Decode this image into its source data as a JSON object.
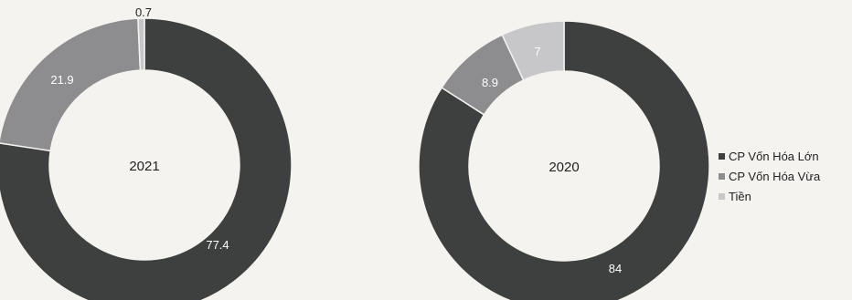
{
  "chart_data": [
    {
      "type": "pie",
      "center_label": "2021",
      "categories": [
        "CP Vốn Hóa Lớn",
        "CP Vốn Hóa Vừa",
        "Tiền"
      ],
      "values": [
        77.4,
        21.9,
        0.7
      ],
      "value_labels": [
        "77.4",
        "21.9",
        "0.7"
      ]
    },
    {
      "type": "pie",
      "center_label": "2020",
      "categories": [
        "CP Vốn Hóa Lớn",
        "CP Vốn Hóa Vừa",
        "Tiền"
      ],
      "values": [
        84,
        8.9,
        7
      ],
      "value_labels": [
        "84",
        "8.9",
        "7"
      ]
    }
  ],
  "legend": {
    "items": [
      "CP Vốn Hóa Lớn",
      "CP Vốn Hóa Vừa",
      "Tiền"
    ]
  },
  "colors": {
    "large_cap": "#3e3f3f",
    "mid_cap": "#8d8d8f",
    "cash": "#c7c7c9"
  }
}
